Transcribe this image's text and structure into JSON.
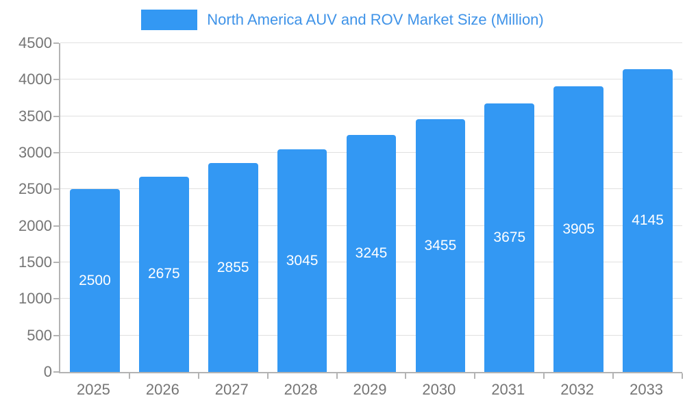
{
  "legend": {
    "label": "North America AUV and ROV Market Size (Million)"
  },
  "colors": {
    "bar": "#3398f3",
    "legend_text": "#3f93e8",
    "grid": "#e0e0e0",
    "axis": "#b3b3b3",
    "tick_text": "#757575",
    "value_text": "#ffffff"
  },
  "chart_data": {
    "type": "bar",
    "title": "North America AUV and ROV Market Size (Million)",
    "categories": [
      "2025",
      "2026",
      "2027",
      "2028",
      "2029",
      "2030",
      "2031",
      "2032",
      "2033"
    ],
    "values": [
      2500,
      2675,
      2855,
      3045,
      3245,
      3455,
      3675,
      3905,
      4145
    ],
    "xlabel": "",
    "ylabel": "",
    "ylim": [
      0,
      4500
    ],
    "yticks": [
      0,
      500,
      1000,
      1500,
      2000,
      2500,
      3000,
      3500,
      4000,
      4500
    ],
    "grid": true,
    "legend_position": "top",
    "value_labels": "inside-center"
  }
}
